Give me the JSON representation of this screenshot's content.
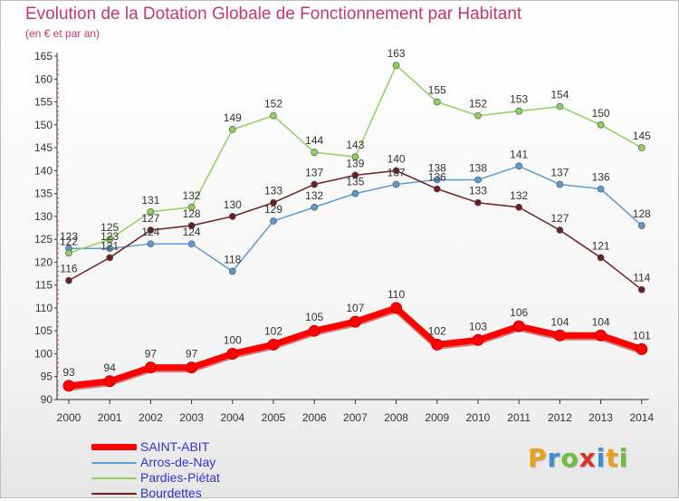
{
  "header": {
    "title": "Evolution de la Dotation Globale de Fonctionnement par Habitant",
    "subtitle": "(en € et par an)"
  },
  "brand": {
    "text": "Proxiti",
    "colors": [
      "#e8a31d",
      "#3c8fd0",
      "#6fbf3a",
      "#d9352a",
      "#3c8fd0",
      "#e8a31d",
      "#6fbf3a"
    ]
  },
  "colors": {
    "title": "#c8366b",
    "legend_text": "#3333cc",
    "axis": "#333333",
    "tick_mark": "#cc3366"
  },
  "chart_data": {
    "type": "line",
    "title": "Evolution de la Dotation Globale de Fonctionnement par Habitant",
    "subtitle": "(en € et par an)",
    "x": [
      "2000",
      "2001",
      "2002",
      "2003",
      "2004",
      "2005",
      "2006",
      "2007",
      "2008",
      "2009",
      "2010",
      "2011",
      "2012",
      "2013",
      "2014"
    ],
    "ylim": [
      90,
      165
    ],
    "yticks": [
      90,
      95,
      100,
      105,
      110,
      115,
      120,
      125,
      130,
      135,
      140,
      145,
      150,
      155,
      160,
      165
    ],
    "grid": false,
    "legend_position": "bottom-left",
    "series": [
      {
        "name": "SAINT-ABIT",
        "color": "#ff0000",
        "values": [
          93,
          94,
          97,
          97,
          100,
          102,
          105,
          107,
          110,
          102,
          103,
          106,
          104,
          104,
          101
        ]
      },
      {
        "name": "Arros-de-Nay",
        "color": "#5b9bd5",
        "values": [
          123,
          123,
          124,
          124,
          118,
          129,
          132,
          135,
          137,
          138,
          138,
          141,
          137,
          136,
          128
        ]
      },
      {
        "name": "Pardies-Piétat",
        "color": "#8fd15f",
        "values": [
          122,
          125,
          131,
          132,
          149,
          152,
          144,
          143,
          163,
          155,
          152,
          153,
          154,
          150,
          145
        ]
      },
      {
        "name": "Bourdettes",
        "color": "#6b1f1f",
        "values": [
          116,
          121,
          127,
          128,
          130,
          133,
          137,
          139,
          140,
          136,
          133,
          132,
          127,
          121,
          114
        ]
      }
    ],
    "data_labels": {
      "SAINT-ABIT": [
        "93",
        "94",
        "97",
        "97",
        "100",
        "102",
        "105",
        "107",
        "110",
        "102",
        "103",
        "106",
        "104",
        "104",
        "101"
      ],
      "Arros-de-Nay": [
        "123",
        "123",
        "124",
        "124",
        "118",
        "129",
        "132",
        "135",
        "137",
        "138",
        "138",
        "141",
        "137",
        "136",
        "128"
      ],
      "Pardies-Piétat": [
        "122",
        "125",
        "131",
        "132",
        "149",
        "152",
        "144",
        "143",
        "163",
        "155",
        "152",
        "153",
        "154",
        "150",
        "145"
      ],
      "Bourdettes": [
        "116",
        "121",
        "127",
        "128",
        "130",
        "133",
        "137",
        "139",
        "140",
        "136",
        "133",
        "132",
        "127",
        "121",
        "114"
      ]
    }
  }
}
